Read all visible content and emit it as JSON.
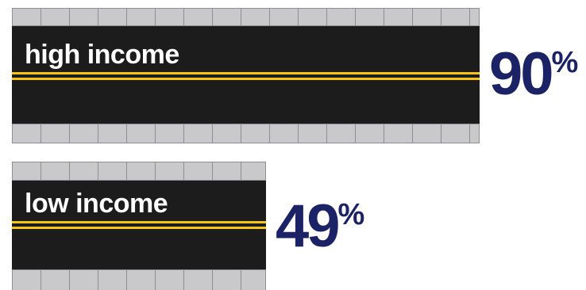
{
  "chart_data": {
    "type": "bar",
    "orientation": "horizontal",
    "categories": [
      "high income",
      "low income"
    ],
    "values": [
      90,
      49
    ],
    "unit": "%",
    "title": "",
    "xlabel": "",
    "ylabel": "",
    "xlim": [
      0,
      100
    ]
  },
  "colors": {
    "road": "#1c1c1c",
    "lane": "#f6c514",
    "sidewalk": "#c9c9cb",
    "value_text": "#1b2265"
  }
}
